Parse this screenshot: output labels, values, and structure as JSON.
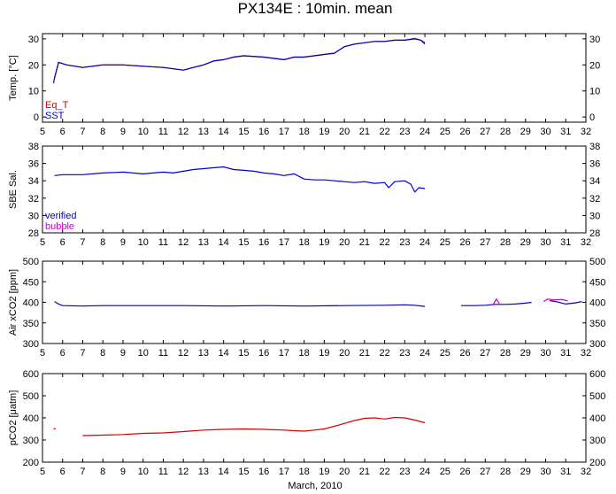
{
  "title": "PX134E : 10min. mean",
  "xlabel": "March, 2010",
  "colors": {
    "blue": "#0000c8",
    "red": "#d40000",
    "magenta": "#cc00cc",
    "axis": "#000000"
  },
  "chart_data": [
    {
      "type": "line",
      "ylabel": "Temp. [°C]",
      "xlim": [
        5,
        32
      ],
      "ylim": [
        -2,
        32
      ],
      "x_ticks": [
        5,
        6,
        7,
        8,
        9,
        10,
        11,
        12,
        13,
        14,
        15,
        16,
        17,
        18,
        19,
        20,
        21,
        22,
        23,
        24,
        25,
        26,
        27,
        28,
        29,
        30,
        31,
        32
      ],
      "y_ticks": [
        0,
        10,
        20,
        30
      ],
      "legend": {
        "placement": "bottom-left",
        "entries": [
          "Eq_T",
          "SST"
        ]
      },
      "series": [
        {
          "name": "Eq_T",
          "color": "#d40000",
          "x": [
            5.6,
            5.8,
            6.2,
            7,
            8,
            9,
            10,
            11,
            12,
            12.5,
            13,
            13.5,
            14,
            14.5,
            15,
            16,
            17,
            17.5,
            18,
            18.5,
            19,
            19.5,
            20,
            20.5,
            21,
            21.5,
            22,
            22.5,
            23,
            23.5,
            23.8,
            24
          ],
          "y": [
            15,
            21,
            20,
            19,
            20,
            20,
            19.5,
            19,
            18,
            19,
            20,
            21.5,
            22,
            23,
            23.5,
            23,
            22,
            23,
            23,
            23.5,
            24,
            24.5,
            27,
            28,
            28.5,
            29,
            29,
            29.5,
            29.5,
            30.2,
            29.5,
            28.5
          ]
        },
        {
          "name": "SST",
          "color": "#0000c8",
          "x": [
            5.55,
            5.6,
            5.8,
            6.2,
            7,
            8,
            9,
            10,
            11,
            12,
            12.5,
            13,
            13.5,
            14,
            14.5,
            15,
            16,
            17,
            17.5,
            18,
            18.5,
            19,
            19.5,
            20,
            20.5,
            21,
            21.5,
            22,
            22.5,
            23,
            23.5,
            23.8,
            24
          ],
          "y": [
            13,
            15,
            21,
            20,
            19,
            20,
            20,
            19.5,
            19,
            18,
            19,
            20,
            21.5,
            22,
            23,
            23.5,
            23,
            22,
            23,
            23,
            23.5,
            24,
            24.5,
            27,
            28,
            28.5,
            29,
            29,
            29.5,
            29.5,
            30,
            29.5,
            28
          ]
        }
      ]
    },
    {
      "type": "line",
      "ylabel": "SBE Sal.",
      "xlim": [
        5,
        32
      ],
      "ylim": [
        28,
        38
      ],
      "x_ticks": [
        5,
        6,
        7,
        8,
        9,
        10,
        11,
        12,
        13,
        14,
        15,
        16,
        17,
        18,
        19,
        20,
        21,
        22,
        23,
        24,
        25,
        26,
        27,
        28,
        29,
        30,
        31,
        32
      ],
      "y_ticks": [
        28,
        30,
        32,
        34,
        36,
        38
      ],
      "legend": {
        "placement": "bottom-left",
        "entries": [
          "verified",
          "bubble"
        ]
      },
      "series": [
        {
          "name": "verified",
          "color": "#0000c8",
          "x": [
            5.6,
            6,
            7,
            8,
            9,
            10,
            11,
            11.5,
            12,
            12.5,
            13,
            13.5,
            14,
            14.5,
            15,
            15.5,
            16,
            16.5,
            17,
            17.5,
            18,
            18.5,
            19,
            19.5,
            20,
            20.5,
            21,
            21.5,
            22,
            22.2,
            22.5,
            23,
            23.3,
            23.5,
            23.7,
            24
          ],
          "y": [
            34.6,
            34.7,
            34.7,
            34.9,
            35,
            34.8,
            35,
            34.9,
            35.1,
            35.3,
            35.4,
            35.5,
            35.6,
            35.3,
            35.2,
            35.1,
            34.9,
            34.8,
            34.6,
            34.8,
            34.2,
            34.1,
            34.1,
            34,
            33.9,
            33.8,
            33.9,
            33.7,
            33.8,
            33.2,
            33.9,
            34,
            33.6,
            32.7,
            33.2,
            33.1
          ]
        }
      ]
    },
    {
      "type": "line",
      "ylabel": "Air xCO2 [ppm]",
      "xlim": [
        5,
        32
      ],
      "ylim": [
        300,
        500
      ],
      "x_ticks": [
        5,
        6,
        7,
        8,
        9,
        10,
        11,
        12,
        13,
        14,
        15,
        16,
        17,
        18,
        19,
        20,
        21,
        22,
        23,
        24,
        25,
        26,
        27,
        28,
        29,
        30,
        31,
        32
      ],
      "y_ticks": [
        300,
        350,
        400,
        450,
        500
      ],
      "series": [
        {
          "name": "",
          "color": "#0000c8",
          "segments": [
            {
              "x": [
                5.6,
                5.8,
                6,
                7,
                8,
                10,
                12,
                14,
                16,
                18,
                20,
                22,
                23,
                23.5,
                24
              ],
              "y": [
                402,
                396,
                392,
                391,
                392,
                392,
                392,
                391,
                392,
                391,
                392,
                393,
                394,
                393,
                390
              ]
            },
            {
              "x": [
                25.8,
                26.5,
                27,
                27.5,
                28,
                28.5,
                29,
                29.3
              ],
              "y": [
                392,
                392,
                393,
                395,
                395,
                396,
                398,
                400
              ]
            },
            {
              "x": [
                30.2,
                30.5,
                31,
                31.5,
                31.8
              ],
              "y": [
                404,
                402,
                396,
                399,
                402
              ]
            }
          ]
        },
        {
          "name": "",
          "color": "#cc00cc",
          "segments": [
            {
              "x": [
                27.4,
                27.55,
                27.7
              ],
              "y": [
                395,
                408,
                397
              ]
            },
            {
              "x": [
                29.9,
                30.1,
                30.4,
                30.8,
                31.1
              ],
              "y": [
                402,
                408,
                406,
                407,
                403
              ]
            }
          ]
        }
      ]
    },
    {
      "type": "line",
      "ylabel": "pCO2 [μatm]",
      "xlim": [
        5,
        32
      ],
      "ylim": [
        200,
        600
      ],
      "x_ticks": [
        5,
        6,
        7,
        8,
        9,
        10,
        11,
        12,
        13,
        14,
        15,
        16,
        17,
        18,
        19,
        20,
        21,
        22,
        23,
        24,
        25,
        26,
        27,
        28,
        29,
        30,
        31,
        32
      ],
      "y_ticks": [
        200,
        300,
        400,
        500,
        600
      ],
      "series": [
        {
          "name": "",
          "color": "#d40000",
          "segments": [
            {
              "x": [
                5.55,
                5.65
              ],
              "y": [
                352,
                350
              ]
            },
            {
              "x": [
                7,
                8,
                9,
                10,
                11,
                12,
                13,
                14,
                15,
                16,
                17,
                17.5,
                18,
                18.5,
                19,
                19.5,
                20,
                20.5,
                21,
                21.5,
                22,
                22.5,
                23,
                23.5,
                24
              ],
              "y": [
                320,
                322,
                325,
                330,
                332,
                338,
                345,
                348,
                350,
                348,
                345,
                342,
                340,
                345,
                350,
                362,
                375,
                388,
                398,
                400,
                395,
                402,
                400,
                390,
                378
              ]
            }
          ]
        }
      ]
    }
  ]
}
